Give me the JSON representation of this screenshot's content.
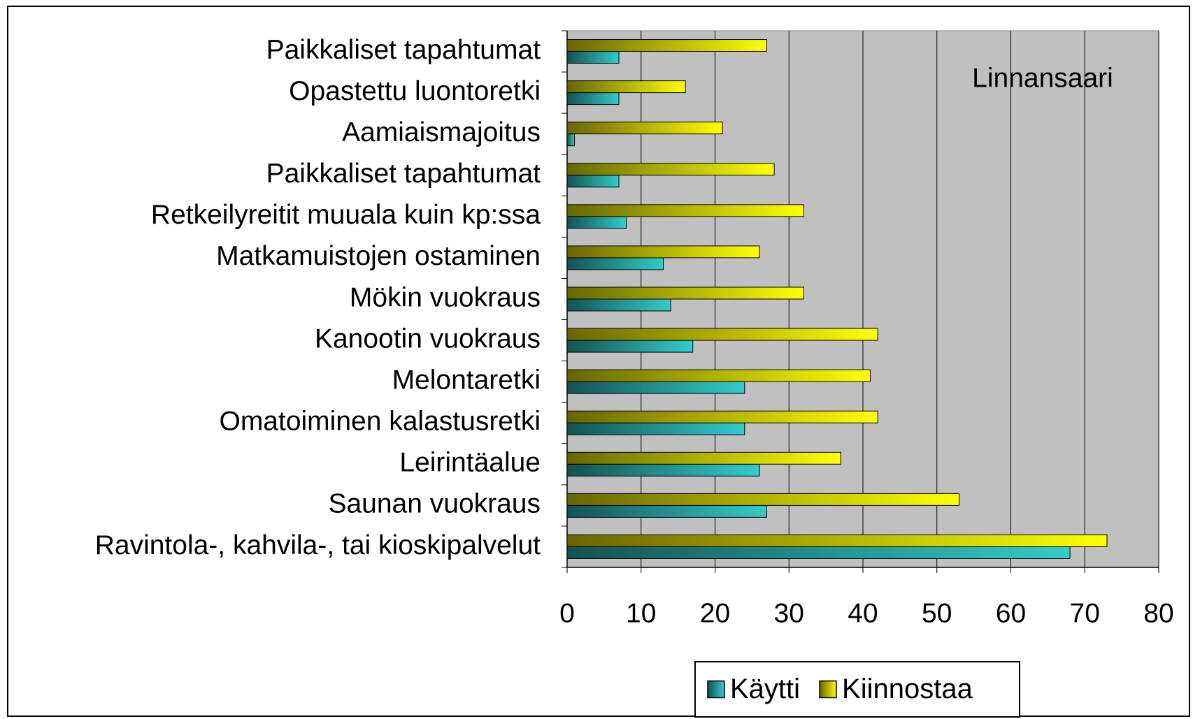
{
  "chart_data": {
    "type": "bar",
    "orientation": "horizontal",
    "annotation": "Linnansaari",
    "categories": [
      "Paikkaliset tapahtumat",
      "Opastettu luontoretki",
      "Aamiaismajoitus",
      "Paikkaliset tapahtumat",
      "Retkeilyreitit muuala kuin kp:ssa",
      "Matkamuistojen ostaminen",
      "Mökin vuokraus",
      "Kanootin vuokraus",
      "Melontaretki",
      "Omatoiminen kalastusretki",
      "Leirintäalue",
      "Saunan vuokraus",
      "Ravintola-, kahvila-, tai kioskipalvelut"
    ],
    "series": [
      {
        "name": "Käytti",
        "color": "#33cccc",
        "values": [
          7,
          7,
          1,
          7,
          8,
          13,
          14,
          17,
          24,
          24,
          26,
          27,
          68
        ]
      },
      {
        "name": "Kiinnostaa",
        "color": "#ffff00",
        "values": [
          27,
          16,
          21,
          28,
          32,
          26,
          32,
          42,
          41,
          42,
          37,
          53,
          73
        ]
      }
    ],
    "xlim": [
      0,
      80
    ],
    "xticks": [
      0,
      10,
      20,
      30,
      40,
      50,
      60,
      70,
      80
    ],
    "grid": true,
    "legend": "bottom"
  }
}
